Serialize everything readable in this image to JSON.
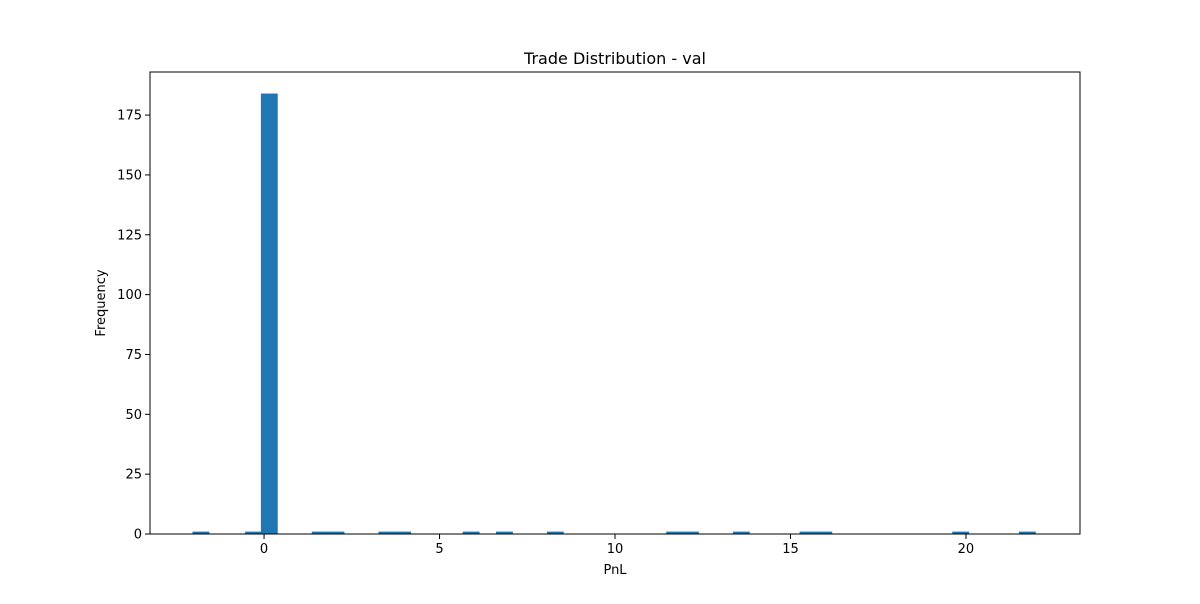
{
  "chart_data": {
    "type": "bar",
    "title": "Trade Distribution - val",
    "xlabel": "PnL",
    "ylabel": "Frequency",
    "xlim": [
      -3.25,
      23.25
    ],
    "ylim": [
      0,
      193
    ],
    "xticks": [
      0,
      5,
      10,
      15,
      20
    ],
    "yticks": [
      0,
      25,
      50,
      75,
      100,
      125,
      150,
      175
    ],
    "bin_width": 0.48,
    "color": "#1f77b4",
    "grid": false,
    "bins": [
      {
        "x": -1.8,
        "value": 1
      },
      {
        "x": -0.3,
        "value": 1
      },
      {
        "x": 0.15,
        "value": 184
      },
      {
        "x": 1.6,
        "value": 1
      },
      {
        "x": 2.05,
        "value": 1
      },
      {
        "x": 3.5,
        "value": 1
      },
      {
        "x": 3.95,
        "value": 1
      },
      {
        "x": 5.9,
        "value": 1
      },
      {
        "x": 6.85,
        "value": 1
      },
      {
        "x": 8.3,
        "value": 1
      },
      {
        "x": 11.7,
        "value": 1
      },
      {
        "x": 12.15,
        "value": 1
      },
      {
        "x": 13.6,
        "value": 1
      },
      {
        "x": 15.5,
        "value": 1
      },
      {
        "x": 15.95,
        "value": 1
      },
      {
        "x": 19.85,
        "value": 1
      },
      {
        "x": 21.75,
        "value": 1
      }
    ]
  }
}
